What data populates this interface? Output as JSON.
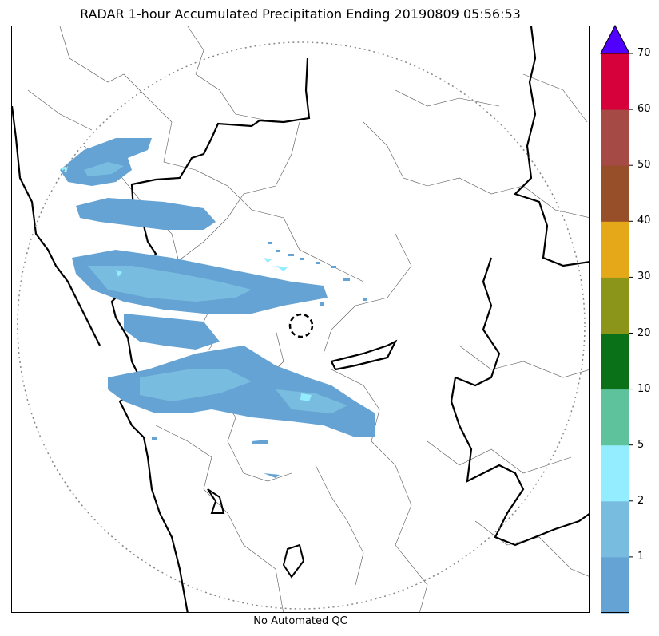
{
  "title": "RADAR 1-hour Accumulated Precipitation Ending 20190809 05:56:53",
  "footer": "No Automated QC",
  "colorbar": {
    "labels": [
      "1",
      "2",
      "5",
      "10",
      "20",
      "30",
      "40",
      "50",
      "60",
      "70"
    ],
    "colors": [
      "#65a3d4",
      "#78bde0",
      "#94ecff",
      "#5ec39c",
      "#0b7118",
      "#8a951a",
      "#e5a819",
      "#974f29",
      "#a64a45",
      "#d6003b"
    ],
    "extend_color": "#5000ff"
  }
}
